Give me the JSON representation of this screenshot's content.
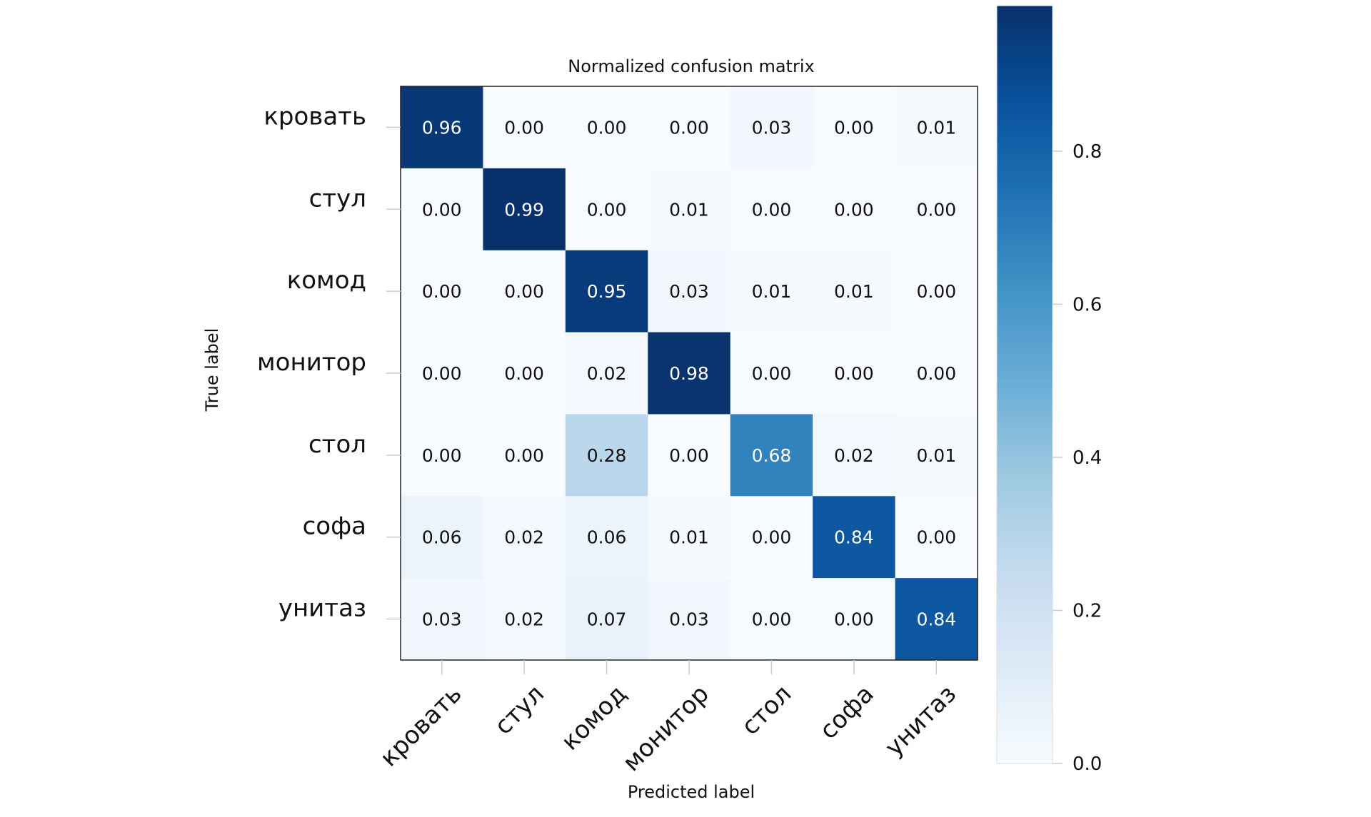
{
  "chart_data": {
    "type": "heatmap",
    "title": "Normalized confusion matrix",
    "xlabel": "Predicted label",
    "ylabel": "True label",
    "row_labels": [
      "кровать",
      "стул",
      "комод",
      "монитор",
      "стол",
      "софа",
      "унитаз"
    ],
    "col_labels": [
      "кровать",
      "стул",
      "комод",
      "монитор",
      "стол",
      "софа",
      "унитаз"
    ],
    "values": [
      [
        0.96,
        0.0,
        0.0,
        0.0,
        0.03,
        0.0,
        0.01
      ],
      [
        0.0,
        0.99,
        0.0,
        0.01,
        0.0,
        0.0,
        0.0
      ],
      [
        0.0,
        0.0,
        0.95,
        0.03,
        0.01,
        0.01,
        0.0
      ],
      [
        0.0,
        0.0,
        0.02,
        0.98,
        0.0,
        0.0,
        0.0
      ],
      [
        0.0,
        0.0,
        0.28,
        0.0,
        0.68,
        0.02,
        0.01
      ],
      [
        0.06,
        0.02,
        0.06,
        0.01,
        0.0,
        0.84,
        0.0
      ],
      [
        0.03,
        0.02,
        0.07,
        0.03,
        0.0,
        0.0,
        0.84
      ]
    ],
    "value_labels": [
      [
        "0.96",
        "0.00",
        "0.00",
        "0.00",
        "0.03",
        "0.00",
        "0.01"
      ],
      [
        "0.00",
        "0.99",
        "0.00",
        "0.01",
        "0.00",
        "0.00",
        "0.00"
      ],
      [
        "0.00",
        "0.00",
        "0.95",
        "0.03",
        "0.01",
        "0.01",
        "0.00"
      ],
      [
        "0.00",
        "0.00",
        "0.02",
        "0.98",
        "0.00",
        "0.00",
        "0.00"
      ],
      [
        "0.00",
        "0.00",
        "0.28",
        "0.00",
        "0.68",
        "0.02",
        "0.01"
      ],
      [
        "0.06",
        "0.02",
        "0.06",
        "0.01",
        "0.00",
        "0.84",
        "0.00"
      ],
      [
        "0.03",
        "0.02",
        "0.07",
        "0.03",
        "0.00",
        "0.00",
        "0.84"
      ]
    ],
    "colormap": "Blues",
    "color_stops": [
      "#f7fbff",
      "#deebf7",
      "#c6dbef",
      "#9ecae1",
      "#6baed6",
      "#4292c6",
      "#2171b5",
      "#08519c",
      "#08306b"
    ],
    "color_range": [
      0,
      0.99
    ],
    "text_threshold": 0.495,
    "text_colors": {
      "light": "#ffffff",
      "dark": "#111111"
    },
    "colorbar": {
      "ticks": [
        0.0,
        0.2,
        0.4,
        0.6,
        0.8
      ],
      "tick_labels": [
        "0.0",
        "0.2",
        "0.4",
        "0.6",
        "0.8"
      ]
    }
  }
}
